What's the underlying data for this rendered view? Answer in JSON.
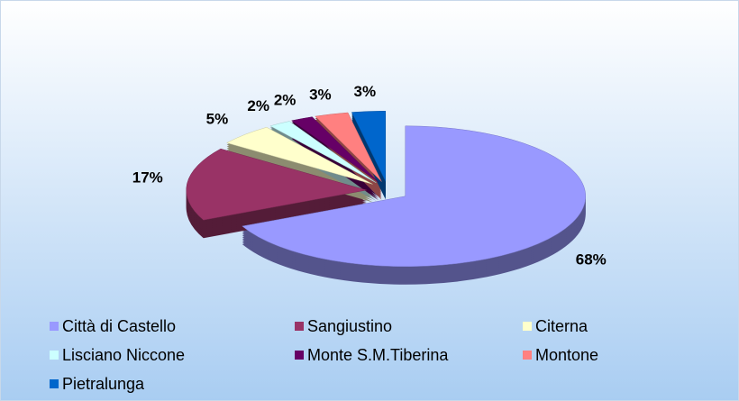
{
  "chart_data": {
    "type": "pie",
    "categories": [
      "Città di Castello",
      "Sangiustino",
      "Citerna",
      "Lisciano Niccone",
      "Monte S.M.Tiberina",
      "Montone",
      "Pietralunga"
    ],
    "values": [
      68,
      17,
      5,
      2,
      2,
      3,
      3
    ],
    "value_labels": [
      "68%",
      "17%",
      "5%",
      "2%",
      "2%",
      "3%",
      "3%"
    ],
    "colors": [
      "#9999ff",
      "#993366",
      "#ffffcc",
      "#ccffff",
      "#660066",
      "#ff8080",
      "#0066cc"
    ],
    "legend": "bottom"
  }
}
